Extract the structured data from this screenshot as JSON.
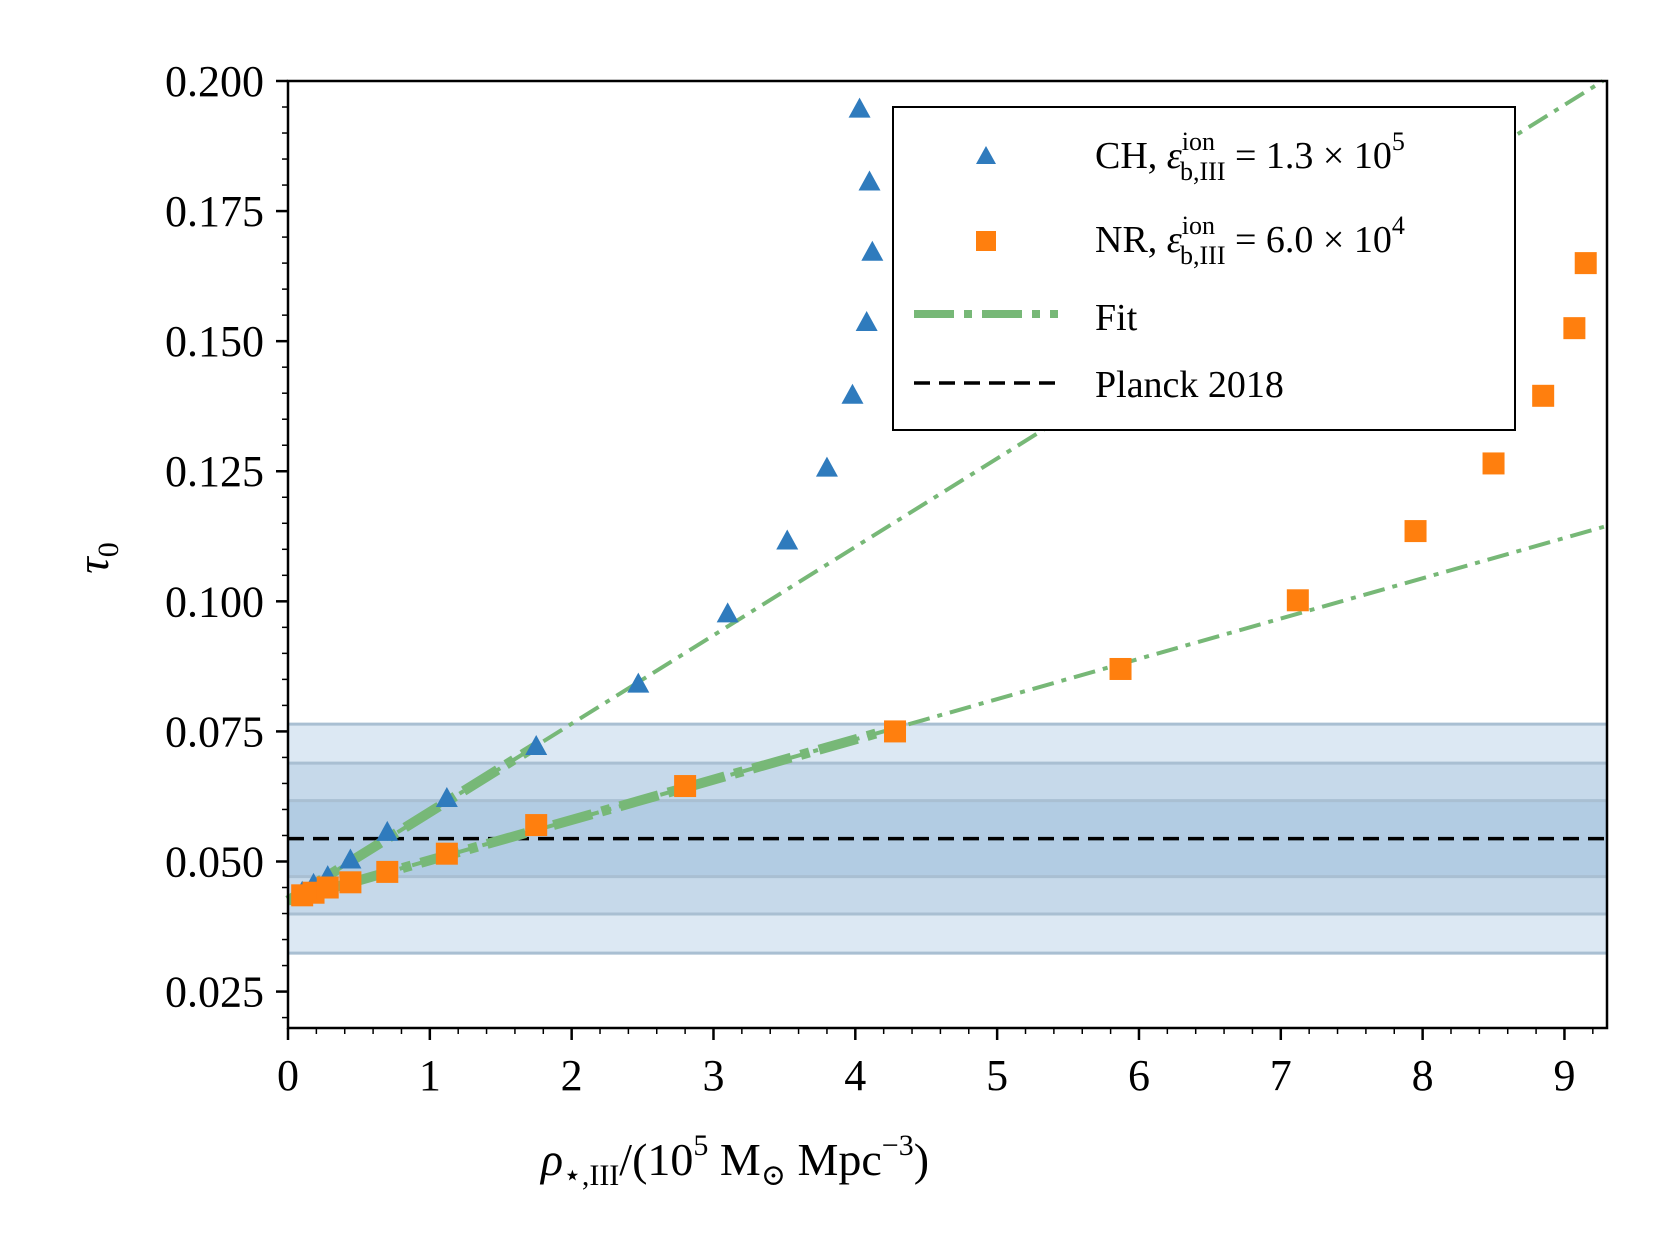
{
  "chart_data": {
    "type": "scatter",
    "xlabel_parts": {
      "rho": "ρ",
      "sub": "⋆,III",
      "mid": "/(10",
      "exp": "5",
      "msun": " M",
      "sun_sub": "⊙",
      "mpc": " Mpc",
      "mpc_exp": "−3",
      "close": ")"
    },
    "ylabel_parts": {
      "tau": "τ",
      "sub": "0"
    },
    "xlim": [
      0,
      9.3
    ],
    "ylim": [
      0.018,
      0.2
    ],
    "x_ticks": [
      0,
      1,
      2,
      3,
      4,
      5,
      6,
      7,
      8,
      9
    ],
    "x_tick_labels": [
      "0",
      "1",
      "2",
      "3",
      "4",
      "5",
      "6",
      "7",
      "8",
      "9"
    ],
    "y_ticks": [
      0.025,
      0.05,
      0.075,
      0.1,
      0.125,
      0.15,
      0.175,
      0.2
    ],
    "y_tick_labels": [
      "0.025",
      "0.050",
      "0.075",
      "0.100",
      "0.125",
      "0.150",
      "0.175",
      "0.200"
    ],
    "bands": [
      {
        "ymin": 0.0324,
        "ymax": 0.0764,
        "color": "#dce8f3"
      },
      {
        "ymin": 0.0399,
        "ymax": 0.0689,
        "color": "#c6d9ea"
      },
      {
        "ymin": 0.0471,
        "ymax": 0.0617,
        "color": "#b2cce3"
      }
    ],
    "series": [
      {
        "name_parts": {
          "prefix": "CH, ",
          "eps": "ε",
          "sup": "ion",
          "sub": "b,III",
          "eq": " = 1.3 × 10",
          "exp": "5"
        },
        "marker": "triangle",
        "color": "#2f7bbd",
        "x": [
          0.1,
          0.18,
          0.28,
          0.44,
          0.7,
          1.12,
          1.75,
          2.47,
          3.1,
          3.52,
          3.8,
          3.98,
          4.08,
          4.12,
          4.1,
          4.03
        ],
        "y": [
          0.044,
          0.0455,
          0.047,
          0.0502,
          0.0555,
          0.062,
          0.072,
          0.084,
          0.0975,
          0.1115,
          0.1255,
          0.1395,
          0.1535,
          0.167,
          0.1805,
          0.1945
        ]
      },
      {
        "name_parts": {
          "prefix": "NR, ",
          "eps": "ε",
          "sup": "ion",
          "sub": "b,III",
          "eq": " = 6.0 × 10",
          "exp": "4"
        },
        "marker": "square",
        "color": "#ff7f0e",
        "x": [
          0.1,
          0.18,
          0.28,
          0.44,
          0.7,
          1.12,
          1.75,
          2.8,
          4.28,
          5.87,
          7.12,
          7.95,
          8.5,
          8.85,
          9.07,
          9.15
        ],
        "y": [
          0.0435,
          0.044,
          0.045,
          0.046,
          0.048,
          0.0515,
          0.057,
          0.0645,
          0.075,
          0.087,
          0.1002,
          0.1135,
          0.1265,
          0.1395,
          0.1525,
          0.165
        ]
      }
    ],
    "fit_lines": [
      {
        "x": [
          0.0,
          9.3
        ],
        "y": [
          0.0425,
          0.2005
        ]
      },
      {
        "x": [
          0.0,
          9.3
        ],
        "y": [
          0.0425,
          0.1145
        ]
      }
    ],
    "fit_color": "#77b877",
    "planck_y": 0.0544,
    "legend": {
      "position": "top-right",
      "fit_label": "Fit",
      "planck_label": "Planck 2018"
    }
  }
}
